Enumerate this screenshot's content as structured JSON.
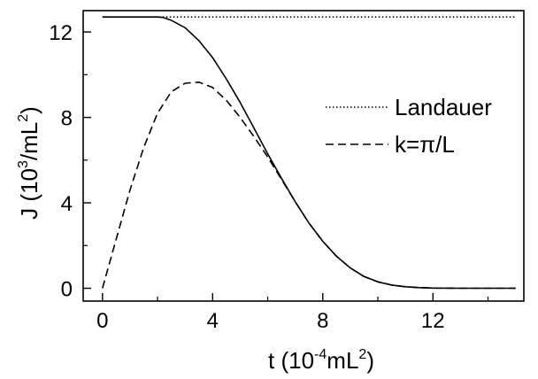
{
  "chart_data": {
    "type": "line",
    "xlabel": {
      "main": "t (10",
      "exp": "-4",
      "unit": "mL",
      "unit_exp": "2",
      "close": ")"
    },
    "ylabel": {
      "main": "J (10",
      "exp": "3",
      "unit": "/mL",
      "unit_exp": "2",
      "close": ")"
    },
    "xlim": [
      -0.7,
      15.3
    ],
    "ylim": [
      -0.6,
      13.0
    ],
    "x_ticks": [
      0,
      4,
      8,
      12
    ],
    "x_tick_labels": [
      "0",
      "4",
      "8",
      "12"
    ],
    "x_minor_ticks": [
      2,
      6,
      10,
      14
    ],
    "y_ticks": [
      0,
      4,
      8,
      12
    ],
    "y_tick_labels": [
      "0",
      "4",
      "8",
      "12"
    ],
    "y_minor_ticks": [
      2,
      6,
      10
    ],
    "legend": {
      "position": "center-right"
    },
    "series": [
      {
        "name": "Landauer",
        "style": "dotted",
        "x": [
          0,
          15
        ],
        "y": [
          12.7,
          12.7
        ]
      },
      {
        "name": "",
        "style": "solid",
        "x": [
          0,
          1,
          2,
          2.2,
          2.5,
          3,
          3.5,
          4,
          4.5,
          5,
          5.5,
          6,
          6.5,
          7,
          7.5,
          8,
          8.5,
          9,
          9.5,
          10,
          10.5,
          11,
          11.5,
          12,
          13,
          14,
          15
        ],
        "y": [
          12.7,
          12.7,
          12.7,
          12.68,
          12.55,
          12.2,
          11.6,
          10.8,
          9.8,
          8.7,
          7.5,
          6.3,
          5.15,
          4.05,
          3.05,
          2.2,
          1.5,
          0.95,
          0.55,
          0.3,
          0.15,
          0.07,
          0.03,
          0.01,
          0,
          0,
          0
        ]
      },
      {
        "name": "k=π/L",
        "style": "dashed",
        "x": [
          0,
          0.5,
          1,
          1.5,
          2,
          2.5,
          3,
          3.5,
          4,
          4.5,
          5,
          5.5,
          6,
          6.5,
          7,
          7.5,
          8,
          8.5,
          9,
          9.5,
          10,
          10.5,
          11,
          11.5,
          12,
          13,
          14,
          15
        ],
        "y": [
          0,
          2.3,
          4.6,
          6.6,
          8.2,
          9.2,
          9.6,
          9.65,
          9.4,
          8.8,
          8.0,
          7.1,
          6.15,
          5.1,
          4.05,
          3.05,
          2.2,
          1.5,
          0.95,
          0.55,
          0.3,
          0.15,
          0.07,
          0.03,
          0.01,
          0,
          0,
          0
        ]
      }
    ]
  }
}
